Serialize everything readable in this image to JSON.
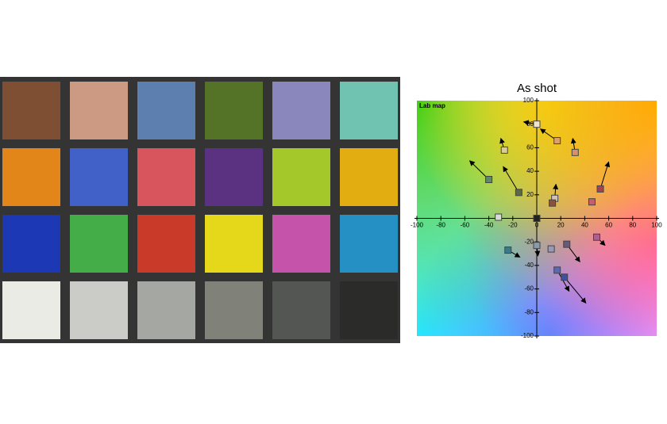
{
  "chart_data": {
    "type": "scatter",
    "title": "As shot",
    "annotation": "Lab map",
    "xlim": [
      -100,
      100
    ],
    "ylim": [
      -100,
      100
    ],
    "xticks": [
      -100,
      -80,
      -60,
      -40,
      -20,
      0,
      20,
      40,
      60,
      80,
      100
    ],
    "yticks": [
      100,
      80,
      60,
      40,
      20,
      -20,
      -40,
      -60,
      -80,
      -100
    ],
    "x": [
      0,
      17,
      -27,
      32,
      -40,
      -15,
      15,
      13,
      53,
      46,
      -32,
      0,
      0,
      -24,
      12,
      25,
      50,
      17,
      23
    ],
    "values": [
      80,
      66,
      58,
      56,
      33,
      22,
      17,
      13,
      25,
      14,
      1,
      0,
      -23,
      -27,
      -26,
      -22,
      -16,
      -44,
      -50
    ],
    "arrow_x": [
      -11,
      3,
      -30,
      30,
      -56,
      -28,
      16,
      13,
      60,
      46,
      -32,
      0,
      1,
      -14,
      12,
      36,
      57,
      27,
      41
    ],
    "arrow_y": [
      82,
      76,
      68,
      68,
      49,
      44,
      29,
      13,
      48,
      14,
      1,
      0,
      -32,
      -33,
      -26,
      -37,
      -23,
      -62,
      -72
    ],
    "colors": [
      "#f2e4cc",
      "#d9a070",
      "#d8cc9a",
      "#d9906a",
      "#5e8a66",
      "#5a6a48",
      "#d8c0b0",
      "#8a5040",
      "#a84050",
      "#c06070",
      "#d8dcd8",
      "#222222",
      "#8a9aaa",
      "#3a7a8a",
      "#9a9ab8",
      "#6a5a7a",
      "#b06090",
      "#5a6ab0",
      "#4050a0"
    ]
  }
}
